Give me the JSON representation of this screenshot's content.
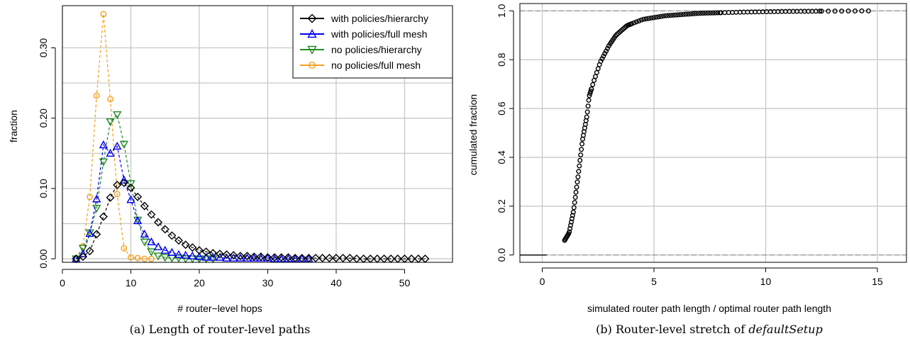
{
  "chart_data": [
    {
      "type": "line",
      "xlabel": "# router−level hops",
      "ylabel": "fraction",
      "caption": "(a) Length of router-level paths",
      "xlim": [
        0,
        57
      ],
      "ylim": [
        -0.005,
        0.36
      ],
      "xticks": [
        "0",
        "10",
        "20",
        "30",
        "40",
        "50"
      ],
      "xtick_values": [
        0,
        10,
        20,
        30,
        40,
        50
      ],
      "yticks": [
        "0.00",
        "0.10",
        "0.20",
        "0.30"
      ],
      "ytick_values": [
        0,
        0.1,
        0.2,
        0.3
      ],
      "grid": true,
      "legend_position": "top-right",
      "series": [
        {
          "name": "with policies/hierarchy",
          "color": "#000000",
          "marker": "diamond",
          "x": [
            2,
            3,
            4,
            5,
            6,
            7,
            8,
            9,
            10,
            11,
            12,
            13,
            14,
            15,
            16,
            17,
            18,
            19,
            20,
            21,
            22,
            23,
            24,
            25,
            26,
            27,
            28,
            29,
            30,
            31,
            32,
            33,
            34,
            35,
            36,
            37,
            38,
            39,
            40,
            41,
            42,
            43,
            44,
            45,
            46,
            47,
            48,
            49,
            50,
            51,
            52,
            53
          ],
          "y": [
            0,
            0.003,
            0.011,
            0.035,
            0.06,
            0.087,
            0.105,
            0.108,
            0.101,
            0.088,
            0.075,
            0.063,
            0.052,
            0.042,
            0.033,
            0.026,
            0.02,
            0.016,
            0.012,
            0.01,
            0.008,
            0.007,
            0.006,
            0.005,
            0.004,
            0.004,
            0.003,
            0.003,
            0.002,
            0.002,
            0.002,
            0.002,
            0.001,
            0.001,
            0.001,
            0.001,
            0.001,
            0.001,
            0.001,
            0.001,
            0.001,
            0,
            0,
            0,
            0,
            0,
            0,
            0,
            0,
            0,
            0,
            0
          ]
        },
        {
          "name": "with policies/full mesh",
          "color": "#0000ee",
          "marker": "triangle-up",
          "x": [
            2,
            3,
            4,
            5,
            6,
            7,
            8,
            9,
            10,
            11,
            12,
            13,
            14,
            15,
            16,
            17,
            18,
            19,
            20,
            21,
            22,
            23,
            24,
            25,
            26,
            27,
            28,
            29,
            30,
            31,
            32,
            33,
            34,
            35,
            36
          ],
          "y": [
            0,
            0.007,
            0.036,
            0.085,
            0.162,
            0.15,
            0.16,
            0.112,
            0.084,
            0.054,
            0.035,
            0.024,
            0.017,
            0.012,
            0.009,
            0.006,
            0.005,
            0.004,
            0.003,
            0.002,
            0.002,
            0.002,
            0.001,
            0.001,
            0.001,
            0.001,
            0.001,
            0.001,
            0.001,
            0,
            0,
            0,
            0,
            0,
            0
          ]
        },
        {
          "name": "no policies/hierarchy",
          "color": "#228b22",
          "marker": "triangle-down",
          "x": [
            2,
            3,
            4,
            5,
            6,
            7,
            8,
            9,
            10,
            11,
            12,
            13,
            14,
            15,
            16,
            17,
            18,
            19,
            20,
            21,
            22
          ],
          "y": [
            0,
            0.015,
            0.037,
            0.072,
            0.138,
            0.195,
            0.205,
            0.163,
            0.107,
            0.055,
            0.024,
            0.01,
            0.004,
            0.002,
            0.001,
            0.001,
            0,
            0,
            0,
            0,
            0
          ]
        },
        {
          "name": "no policies/full mesh",
          "color": "#f0a020",
          "marker": "circle",
          "x": [
            2,
            3,
            4,
            5,
            6,
            7,
            8,
            9,
            10,
            11,
            12,
            13
          ],
          "y": [
            0,
            0.018,
            0.088,
            0.232,
            0.348,
            0.227,
            0.092,
            0.015,
            0.002,
            0.001,
            0,
            0
          ]
        }
      ]
    },
    {
      "type": "scatter",
      "xlabel": "simulated router path length / optimal router path length",
      "ylabel": "cumulated fraction",
      "caption_prefix": "(b) Router-level stretch of ",
      "caption_emph": "defaultSetup",
      "xlim": [
        -1,
        16.3
      ],
      "ylim": [
        -0.03,
        1.03
      ],
      "xticks": [
        "0",
        "5",
        "10",
        "15"
      ],
      "xtick_values": [
        0,
        5,
        10,
        15
      ],
      "yticks": [
        "0.0",
        "0.2",
        "0.4",
        "0.6",
        "0.8",
        "1.0"
      ],
      "ytick_values": [
        0,
        0.2,
        0.4,
        0.6,
        0.8,
        1.0
      ],
      "grid": true,
      "reference_lines": [
        0,
        1
      ],
      "series": [
        {
          "color": "#000000",
          "marker": "circle",
          "curve": [
            [
              1.0,
              0.06
            ],
            [
              1.2,
              0.09
            ],
            [
              1.4,
              0.18
            ],
            [
              1.6,
              0.32
            ],
            [
              1.8,
              0.47
            ],
            [
              2.0,
              0.57
            ],
            [
              2.1,
              0.65
            ],
            [
              2.3,
              0.71
            ],
            [
              2.6,
              0.79
            ],
            [
              3.0,
              0.86
            ],
            [
              3.3,
              0.9
            ],
            [
              3.8,
              0.94
            ],
            [
              4.5,
              0.965
            ],
            [
              5.5,
              0.98
            ],
            [
              7,
              0.99
            ],
            [
              9,
              0.995
            ],
            [
              11,
              0.998
            ],
            [
              13,
              0.999
            ],
            [
              14.7,
              1.0
            ]
          ]
        }
      ]
    }
  ]
}
